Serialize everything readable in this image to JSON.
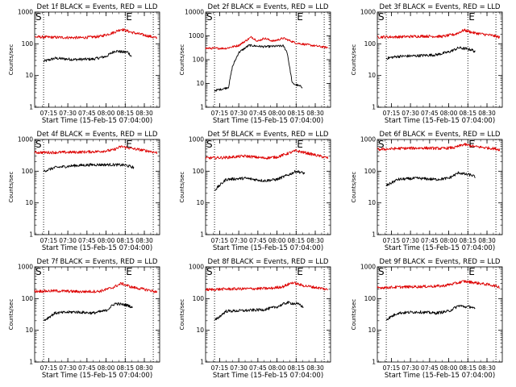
{
  "chart_data": [
    {
      "type": "line",
      "title": "Det 1f BLACK = Events, RED = LLD",
      "xlabel": "Start Time (15-Feb-15 07:04:00)",
      "ylabel": "Counts/sec",
      "yscale": "log",
      "ylim": [
        1,
        1000
      ],
      "x_ticks": [
        "07:15",
        "07:30",
        "07:45",
        "08:00",
        "08:15",
        "08:30"
      ],
      "y_ticks": [
        "1",
        "10",
        "100",
        "1000"
      ],
      "markers": [
        "S",
        "E"
      ],
      "marker_times": [
        "07:11",
        "08:15",
        "08:37"
      ],
      "series": [
        {
          "name": "Events",
          "color": "#000000",
          "x": [
            "07:11",
            "07:20",
            "07:35",
            "07:50",
            "08:00",
            "08:07",
            "08:13",
            "08:17",
            "08:20"
          ],
          "values": [
            28,
            35,
            32,
            33,
            40,
            60,
            55,
            55,
            40
          ]
        },
        {
          "name": "LLD",
          "color": "#dd0000",
          "x": [
            "07:04",
            "07:20",
            "07:40",
            "07:55",
            "08:05",
            "08:12",
            "08:20",
            "08:35",
            "08:40"
          ],
          "values": [
            165,
            160,
            155,
            170,
            220,
            290,
            230,
            170,
            150
          ]
        }
      ]
    },
    {
      "type": "line",
      "title": "Det 2f BLACK = Events, RED = LLD",
      "xlabel": "Start Time (15-Feb-15 07:04:00)",
      "ylabel": "Counts/sec",
      "yscale": "log",
      "ylim": [
        1,
        10000
      ],
      "x_ticks": [
        "07:15",
        "07:30",
        "07:45",
        "08:00",
        "08:15",
        "08:30"
      ],
      "y_ticks": [
        "1",
        "10",
        "100",
        "1000",
        "10000"
      ],
      "markers": [
        "S",
        "E"
      ],
      "marker_times": [
        "07:11",
        "08:15",
        "08:37"
      ],
      "series": [
        {
          "name": "Events",
          "color": "#000000",
          "x": [
            "07:11",
            "07:18",
            "07:22",
            "07:25",
            "07:30",
            "07:38",
            "07:50",
            "08:05",
            "08:08",
            "08:12",
            "08:20"
          ],
          "values": [
            5,
            6,
            7,
            50,
            200,
            400,
            350,
            380,
            200,
            10,
            7
          ]
        },
        {
          "name": "LLD",
          "color": "#dd0000",
          "x": [
            "07:04",
            "07:20",
            "07:30",
            "07:40",
            "07:45",
            "07:50",
            "07:57",
            "08:05",
            "08:15",
            "08:30",
            "08:40"
          ],
          "values": [
            300,
            300,
            400,
            900,
            600,
            800,
            600,
            800,
            500,
            380,
            320
          ]
        }
      ]
    },
    {
      "type": "line",
      "title": "Det 3f BLACK = Events, RED = LLD",
      "xlabel": "Start Time (15-Feb-15 07:04:00)",
      "ylabel": "Counts/sec",
      "yscale": "log",
      "ylim": [
        1,
        1000
      ],
      "x_ticks": [
        "07:15",
        "07:30",
        "07:45",
        "08:00",
        "08:15",
        "08:30"
      ],
      "y_ticks": [
        "1",
        "10",
        "100",
        "1000"
      ],
      "markers": [
        "S",
        "E"
      ],
      "marker_times": [
        "07:11",
        "08:15",
        "08:37"
      ],
      "series": [
        {
          "name": "Events",
          "color": "#000000",
          "x": [
            "07:11",
            "07:20",
            "07:35",
            "07:50",
            "08:00",
            "08:08",
            "08:13",
            "08:18",
            "08:21"
          ],
          "values": [
            35,
            40,
            42,
            45,
            55,
            75,
            70,
            65,
            55
          ]
        },
        {
          "name": "LLD",
          "color": "#dd0000",
          "x": [
            "07:04",
            "07:20",
            "07:40",
            "07:55",
            "08:05",
            "08:12",
            "08:20",
            "08:35",
            "08:40"
          ],
          "values": [
            165,
            165,
            175,
            170,
            200,
            270,
            220,
            180,
            160
          ]
        }
      ]
    },
    {
      "type": "line",
      "title": "Det 4f BLACK = Events, RED = LLD",
      "xlabel": "Start Time (15-Feb-15 07:04:00)",
      "ylabel": "Counts/sec",
      "yscale": "log",
      "ylim": [
        1,
        1000
      ],
      "x_ticks": [
        "07:15",
        "07:30",
        "07:45",
        "08:00",
        "08:15",
        "08:30"
      ],
      "y_ticks": [
        "1",
        "10",
        "100",
        "1000"
      ],
      "markers": [
        "S",
        "E"
      ],
      "marker_times": [
        "07:11",
        "08:15",
        "08:37"
      ],
      "series": [
        {
          "name": "Events",
          "color": "#000000",
          "x": [
            "07:11",
            "07:20",
            "07:35",
            "07:50",
            "08:05",
            "08:15",
            "08:22"
          ],
          "values": [
            100,
            130,
            150,
            160,
            160,
            155,
            130
          ]
        },
        {
          "name": "LLD",
          "color": "#dd0000",
          "x": [
            "07:04",
            "07:20",
            "07:40",
            "07:55",
            "08:05",
            "08:12",
            "08:20",
            "08:35",
            "08:40"
          ],
          "values": [
            390,
            390,
            400,
            420,
            460,
            600,
            520,
            420,
            380
          ]
        }
      ]
    },
    {
      "type": "line",
      "title": "Det 5f BLACK = Events, RED = LLD",
      "xlabel": "Start Time (15-Feb-15 07:04:00)",
      "ylabel": "Counts/sec",
      "yscale": "log",
      "ylim": [
        1,
        1000
      ],
      "x_ticks": [
        "07:15",
        "07:30",
        "07:45",
        "08:00",
        "08:15",
        "08:30"
      ],
      "y_ticks": [
        "1",
        "10",
        "100",
        "1000"
      ],
      "markers": [
        "S",
        "E"
      ],
      "marker_times": [
        "07:11",
        "08:15",
        "08:37"
      ],
      "series": [
        {
          "name": "Events",
          "color": "#000000",
          "x": [
            "07:11",
            "07:20",
            "07:35",
            "07:50",
            "08:00",
            "08:10",
            "08:15",
            "08:22"
          ],
          "values": [
            25,
            55,
            60,
            50,
            55,
            80,
            100,
            85
          ]
        },
        {
          "name": "LLD",
          "color": "#dd0000",
          "x": [
            "07:04",
            "07:20",
            "07:35",
            "07:50",
            "08:00",
            "08:10",
            "08:15",
            "08:25",
            "08:40"
          ],
          "values": [
            260,
            270,
            300,
            260,
            280,
            380,
            440,
            360,
            260
          ]
        }
      ]
    },
    {
      "type": "line",
      "title": "Det 6f BLACK = Events, RED = LLD",
      "xlabel": "Start Time (15-Feb-15 07:04:00)",
      "ylabel": "Counts/sec",
      "yscale": "log",
      "ylim": [
        1,
        1000
      ],
      "x_ticks": [
        "07:15",
        "07:30",
        "07:45",
        "08:00",
        "08:15",
        "08:30"
      ],
      "y_ticks": [
        "1",
        "10",
        "100",
        "1000"
      ],
      "markers": [
        "S",
        "E"
      ],
      "marker_times": [
        "07:11",
        "08:15",
        "08:37"
      ],
      "series": [
        {
          "name": "Events",
          "color": "#000000",
          "x": [
            "07:11",
            "07:20",
            "07:35",
            "07:50",
            "08:00",
            "08:08",
            "08:13",
            "08:18",
            "08:21"
          ],
          "values": [
            35,
            55,
            60,
            55,
            60,
            90,
            80,
            75,
            65
          ]
        },
        {
          "name": "LLD",
          "color": "#dd0000",
          "x": [
            "07:04",
            "07:20",
            "07:40",
            "07:55",
            "08:05",
            "08:12",
            "08:20",
            "08:35",
            "08:40"
          ],
          "values": [
            480,
            520,
            540,
            520,
            560,
            700,
            600,
            520,
            480
          ]
        }
      ]
    },
    {
      "type": "line",
      "title": "Det 7f BLACK = Events, RED = LLD",
      "xlabel": "Start Time (15-Feb-15 07:04:00)",
      "ylabel": "Counts/sec",
      "yscale": "log",
      "ylim": [
        1,
        1000
      ],
      "x_ticks": [
        "07:15",
        "07:30",
        "07:45",
        "08:00",
        "08:15",
        "08:30"
      ],
      "y_ticks": [
        "1",
        "10",
        "100",
        "1000"
      ],
      "markers": [
        "S",
        "E"
      ],
      "marker_times": [
        "07:11",
        "08:15",
        "08:37"
      ],
      "series": [
        {
          "name": "Events",
          "color": "#000000",
          "x": [
            "07:11",
            "07:20",
            "07:35",
            "07:50",
            "08:00",
            "08:07",
            "08:13",
            "08:18",
            "08:21"
          ],
          "values": [
            20,
            35,
            38,
            35,
            42,
            70,
            65,
            60,
            50
          ]
        },
        {
          "name": "LLD",
          "color": "#dd0000",
          "x": [
            "07:04",
            "07:20",
            "07:40",
            "07:55",
            "08:05",
            "08:12",
            "08:20",
            "08:35",
            "08:40"
          ],
          "values": [
            170,
            175,
            165,
            170,
            220,
            300,
            230,
            180,
            160
          ]
        }
      ]
    },
    {
      "type": "line",
      "title": "Det 8f BLACK = Events, RED = LLD",
      "xlabel": "Start Time (15-Feb-15 07:04:00)",
      "ylabel": "Counts/sec",
      "yscale": "log",
      "ylim": [
        1,
        1000
      ],
      "x_ticks": [
        "07:15",
        "07:30",
        "07:45",
        "08:00",
        "08:15",
        "08:30"
      ],
      "y_ticks": [
        "1",
        "10",
        "100",
        "1000"
      ],
      "markers": [
        "S",
        "E"
      ],
      "marker_times": [
        "07:11",
        "08:15",
        "08:37"
      ],
      "series": [
        {
          "name": "Events",
          "color": "#000000",
          "x": [
            "07:11",
            "07:20",
            "07:35",
            "07:50",
            "08:00",
            "08:08",
            "08:13",
            "08:18",
            "08:21"
          ],
          "values": [
            20,
            40,
            42,
            45,
            55,
            75,
            70,
            65,
            50
          ]
        },
        {
          "name": "LLD",
          "color": "#dd0000",
          "x": [
            "07:04",
            "07:20",
            "07:40",
            "07:55",
            "08:05",
            "08:12",
            "08:20",
            "08:35",
            "08:40"
          ],
          "values": [
            190,
            200,
            205,
            210,
            240,
            320,
            260,
            210,
            190
          ]
        }
      ]
    },
    {
      "type": "line",
      "title": "Det 9f BLACK = Events, RED = LLD",
      "xlabel": "Start Time (15-Feb-15 07:04:00)",
      "ylabel": "Counts/sec",
      "yscale": "log",
      "ylim": [
        1,
        1000
      ],
      "x_ticks": [
        "07:15",
        "07:30",
        "07:45",
        "08:00",
        "08:15",
        "08:30"
      ],
      "y_ticks": [
        "1",
        "10",
        "100",
        "1000"
      ],
      "markers": [
        "S",
        "E"
      ],
      "marker_times": [
        "07:11",
        "08:15",
        "08:37"
      ],
      "series": [
        {
          "name": "Events",
          "color": "#000000",
          "x": [
            "07:11",
            "07:20",
            "07:35",
            "07:50",
            "08:00",
            "08:08",
            "08:13",
            "08:18",
            "08:21"
          ],
          "values": [
            22,
            35,
            38,
            35,
            40,
            60,
            55,
            55,
            45
          ]
        },
        {
          "name": "LLD",
          "color": "#dd0000",
          "x": [
            "07:04",
            "07:20",
            "07:40",
            "07:55",
            "08:05",
            "08:12",
            "08:20",
            "08:35",
            "08:40"
          ],
          "values": [
            220,
            230,
            240,
            250,
            300,
            350,
            320,
            260,
            230
          ]
        }
      ]
    }
  ]
}
